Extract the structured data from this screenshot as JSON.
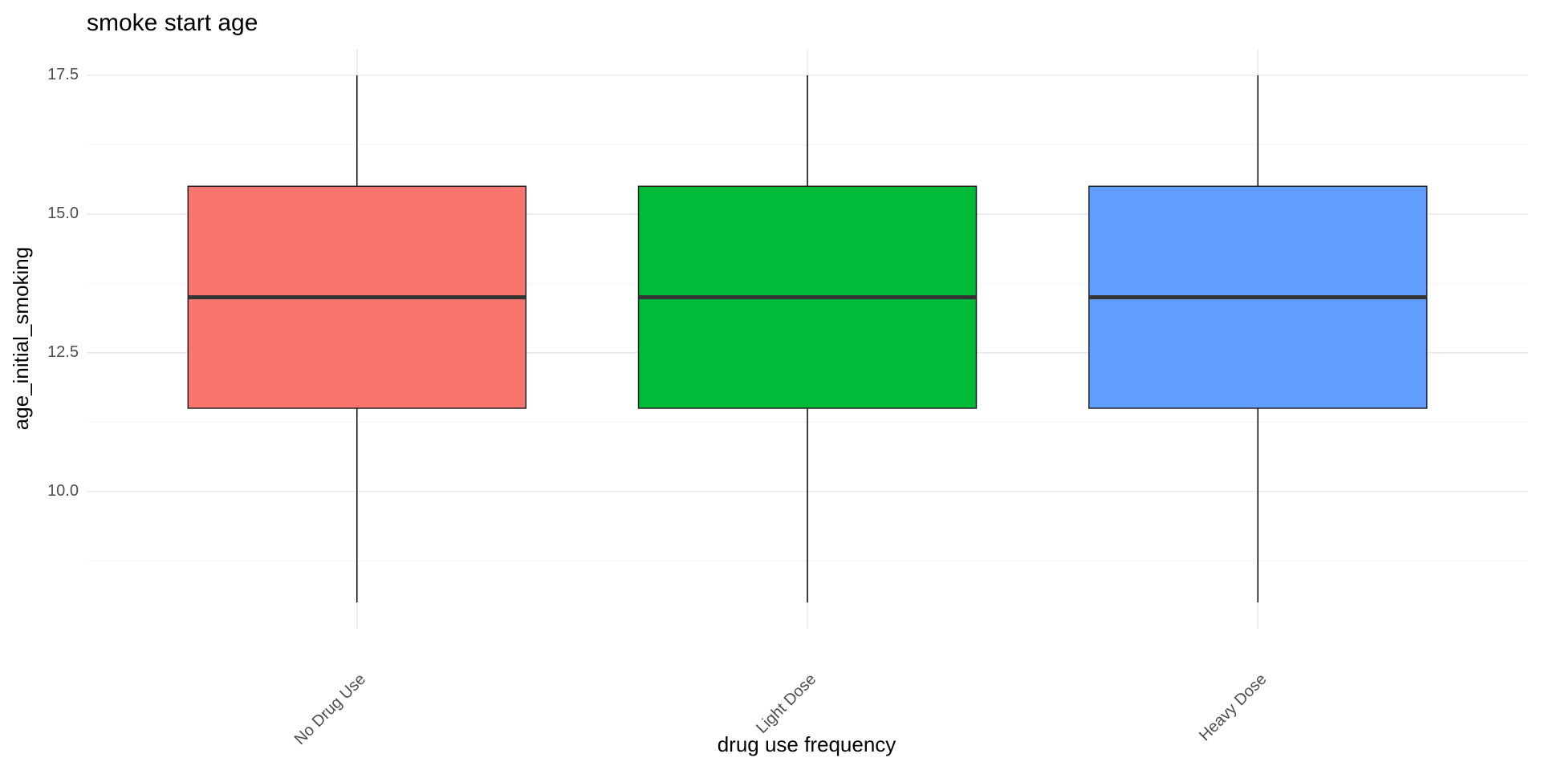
{
  "chart_data": {
    "type": "box",
    "title": "smoke start age",
    "x_label": "drug use frequency",
    "y_label": "age_initial_smoking",
    "categories": [
      "No Drug Use",
      "Light Dose",
      "Heavy Dose"
    ],
    "colors": [
      "#f8766d",
      "#00ba38",
      "#619cff"
    ],
    "low": [
      8,
      8,
      8
    ],
    "q1": [
      11.5,
      11.5,
      11.5
    ],
    "median": [
      13.5,
      13.5,
      13.5
    ],
    "q3": [
      15.5,
      15.5,
      15.5
    ],
    "high": [
      17.5,
      17.5,
      17.5
    ],
    "ylim": [
      7.525,
      17.975
    ],
    "yticks": [
      {
        "value": 10,
        "label": "10.0"
      },
      12.5,
      {
        "value": 15,
        "label": "15.0"
      },
      17.5
    ],
    "yminor": [
      8.75,
      11.25,
      13.75,
      16.25
    ],
    "grid": true
  }
}
